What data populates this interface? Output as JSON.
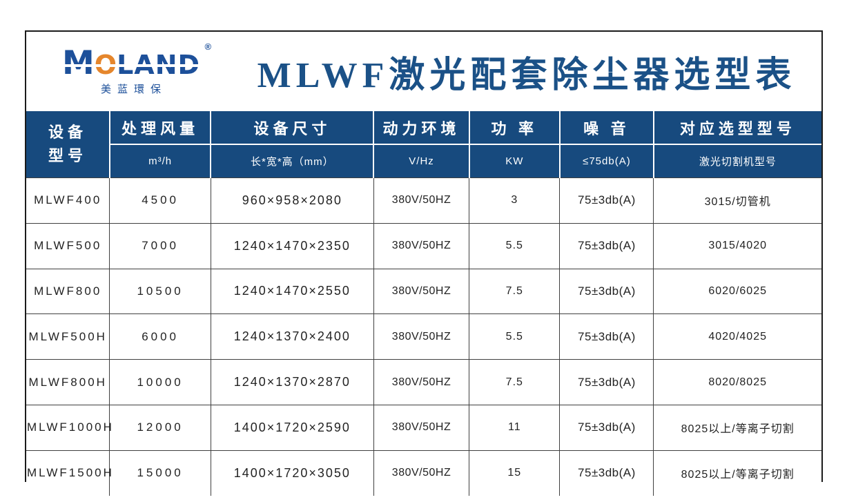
{
  "logo": {
    "brand_m": "M",
    "brand_o": "O",
    "brand_land": "LAND",
    "registered": "®",
    "subtitle": "美蓝環保"
  },
  "page": {
    "title": "MLWF激光配套除尘器选型表"
  },
  "colors": {
    "header_navy": "#174a7e",
    "title_blue": "#1b5187",
    "logo_blue": "#1d509a",
    "logo_orange": "#e5862c",
    "grid_line": "#3f3f3f"
  },
  "chart_data": {
    "type": "table",
    "title": "MLWF激光配套除尘器选型表",
    "columns": [
      "设备型号",
      "处理风量 m³/h",
      "设备尺寸 长*宽*高（mm）",
      "动力环境 V/Hz",
      "功率 KW",
      "噪音 ≤75db(A)",
      "对应选型型号 激光切割机型号"
    ],
    "rows": [
      [
        "MLWF400",
        "4500",
        "960×958×2080",
        "380V/50HZ",
        "3",
        "75±3db(A)",
        "3015/切管机"
      ],
      [
        "MLWF500",
        "7000",
        "1240×1470×2350",
        "380V/50HZ",
        "5.5",
        "75±3db(A)",
        "3015/4020"
      ],
      [
        "MLWF800",
        "10500",
        "1240×1470×2550",
        "380V/50HZ",
        "7.5",
        "75±3db(A)",
        "6020/6025"
      ],
      [
        "MLWF500H",
        "6000",
        "1240×1370×2400",
        "380V/50HZ",
        "5.5",
        "75±3db(A)",
        "4020/4025"
      ],
      [
        "MLWF800H",
        "10000",
        "1240×1370×2870",
        "380V/50HZ",
        "7.5",
        "75±3db(A)",
        "8020/8025"
      ],
      [
        "MLWF1000H",
        "12000",
        "1400×1720×2590",
        "380V/50HZ",
        "11",
        "75±3db(A)",
        "8025以上/等离子切割"
      ],
      [
        "MLWF1500H",
        "15000",
        "1400×1720×3050",
        "380V/50HZ",
        "15",
        "75±3db(A)",
        "8025以上/等离子切割"
      ]
    ]
  },
  "table": {
    "headers": {
      "model": {
        "line1": "设备",
        "line2": "型号"
      },
      "columns": [
        {
          "label": "处理风量",
          "unit": "m³/h"
        },
        {
          "label": "设备尺寸",
          "unit": "长*宽*高（mm）"
        },
        {
          "label": "动力环境",
          "unit": "V/Hz"
        },
        {
          "label": "功 率",
          "unit": "KW"
        },
        {
          "label": "噪 音",
          "unit": "≤75db(A)"
        },
        {
          "label": "对应选型型号",
          "unit": "激光切割机型号"
        }
      ]
    },
    "rows": [
      {
        "model": "MLWF400",
        "airflow": "4500",
        "size": "960×958×2080",
        "power_env": "380V/50HZ",
        "power": "3",
        "noise": "75±3db(A)",
        "match": "3015/切管机"
      },
      {
        "model": "MLWF500",
        "airflow": "7000",
        "size": "1240×1470×2350",
        "power_env": "380V/50HZ",
        "power": "5.5",
        "noise": "75±3db(A)",
        "match": "3015/4020"
      },
      {
        "model": "MLWF800",
        "airflow": "10500",
        "size": "1240×1470×2550",
        "power_env": "380V/50HZ",
        "power": "7.5",
        "noise": "75±3db(A)",
        "match": "6020/6025"
      },
      {
        "model": "MLWF500H",
        "airflow": "6000",
        "size": "1240×1370×2400",
        "power_env": "380V/50HZ",
        "power": "5.5",
        "noise": "75±3db(A)",
        "match": "4020/4025"
      },
      {
        "model": "MLWF800H",
        "airflow": "10000",
        "size": "1240×1370×2870",
        "power_env": "380V/50HZ",
        "power": "7.5",
        "noise": "75±3db(A)",
        "match": "8020/8025"
      },
      {
        "model": "MLWF1000H",
        "airflow": "12000",
        "size": "1400×1720×2590",
        "power_env": "380V/50HZ",
        "power": "11",
        "noise": "75±3db(A)",
        "match": "8025以上/等离子切割"
      },
      {
        "model": "MLWF1500H",
        "airflow": "15000",
        "size": "1400×1720×3050",
        "power_env": "380V/50HZ",
        "power": "15",
        "noise": "75±3db(A)",
        "match": "8025以上/等离子切割"
      }
    ]
  }
}
